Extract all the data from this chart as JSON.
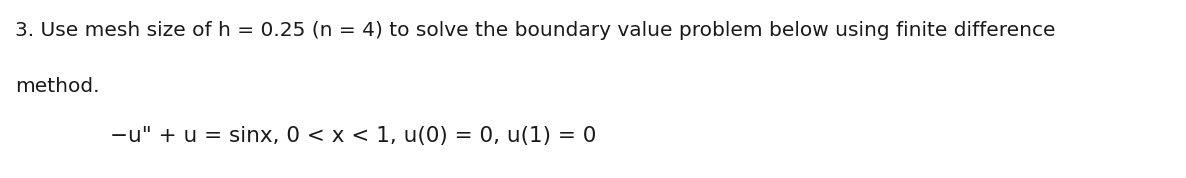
{
  "line1": "3. Use mesh size of h = 0.25 (n = 4) to solve the boundary value problem below using finite difference",
  "line2": "method.",
  "equation": "−u\" + u = sinx, 0 < x < 1, u(0) = 0, u(1) = 0",
  "bg_color": "#ffffff",
  "text_color": "#1a1a1a",
  "font_size_body": 14.5,
  "font_size_eq": 15.5,
  "fig_width": 11.86,
  "fig_height": 1.78,
  "dpi": 100
}
